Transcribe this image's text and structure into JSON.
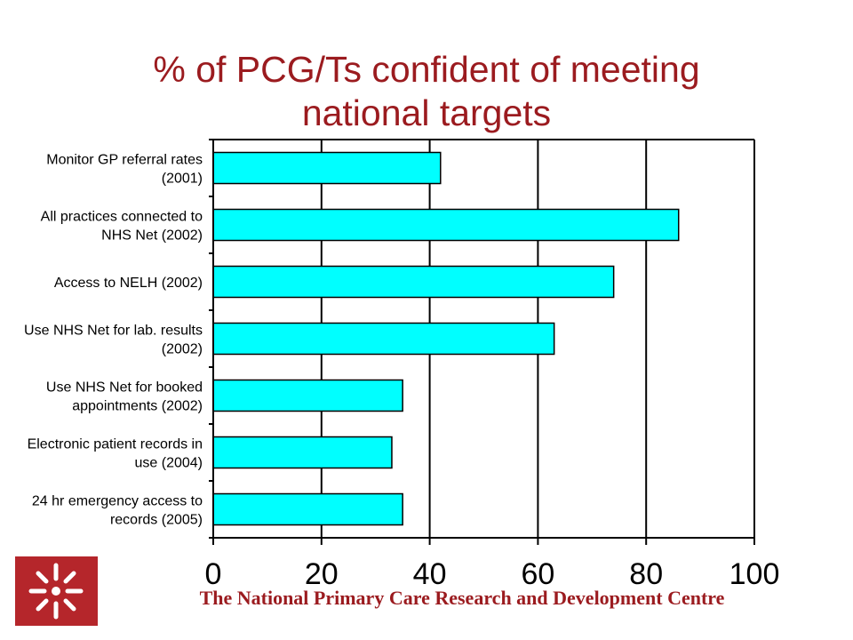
{
  "title": {
    "line1": "% of PCG/Ts confident of meeting",
    "line2": "national targets"
  },
  "footer": "The National Primary Care Research and Development Centre",
  "colors": {
    "title": "#9b1b1f",
    "bar_fill": "#00ffff",
    "bar_stroke": "#000000",
    "logo": "#b5262b"
  },
  "logo_icon": "asterisk-cross-logo-icon",
  "chart_data": {
    "type": "bar",
    "orientation": "horizontal",
    "categories": [
      [
        "Monitor GP referral rates",
        "(2001)"
      ],
      [
        "All practices connected to",
        "NHS Net (2002)"
      ],
      [
        "Access to NELH (2002)"
      ],
      [
        "Use NHS Net for lab. results",
        "(2002)"
      ],
      [
        "Use NHS Net for booked",
        "appointments (2002)"
      ],
      [
        "Electronic patient records in",
        "use (2004)"
      ],
      [
        "24 hr emergency access to",
        "records (2005)"
      ]
    ],
    "values": [
      42,
      86,
      74,
      63,
      35,
      33,
      35
    ],
    "xlim": [
      0,
      100
    ],
    "xticks": [
      0,
      20,
      40,
      60,
      80,
      100
    ],
    "grid": "vertical",
    "legend": "none"
  }
}
